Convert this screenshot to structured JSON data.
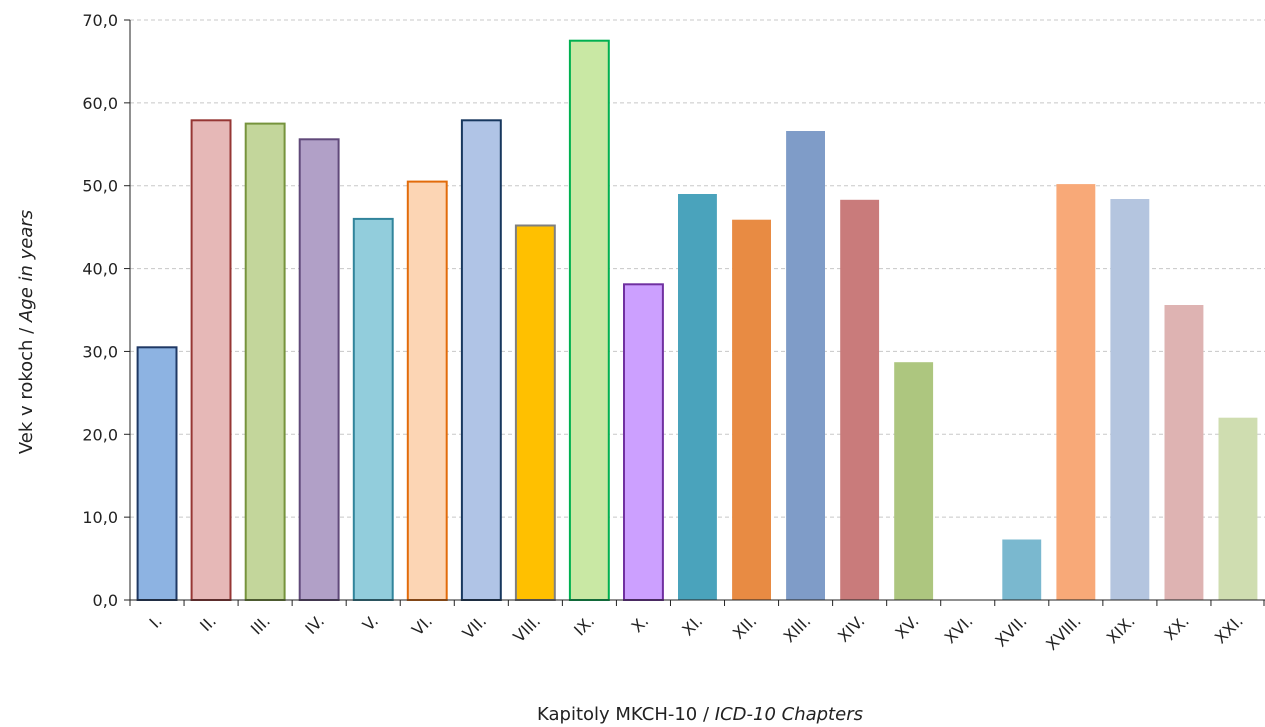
{
  "chart_data": {
    "type": "bar",
    "categories": [
      "I.",
      "II.",
      "III.",
      "IV.",
      "V.",
      "VI.",
      "VII.",
      "VIII.",
      "IX.",
      "X.",
      "XI.",
      "XII.",
      "XIII.",
      "XIV.",
      "XV.",
      "XVI.",
      "XVII.",
      "XVIII.",
      "XIX.",
      "XX.",
      "XXI."
    ],
    "values": [
      30.5,
      57.9,
      57.5,
      55.6,
      46.0,
      50.5,
      57.9,
      45.2,
      67.5,
      38.1,
      49.0,
      45.9,
      56.6,
      48.3,
      28.7,
      null,
      7.3,
      50.2,
      48.4,
      35.6,
      22.0
    ],
    "fill_colors": [
      "#8db3e2",
      "#e6b8b7",
      "#c3d69b",
      "#b1a0c7",
      "#92cddc",
      "#fcd5b4",
      "#b0c4e6",
      "#ffc000",
      "#c9e8a4",
      "#cca0ff",
      "#4aa3bc",
      "#e88b43",
      "#7f9cc8",
      "#c97b7b",
      "#adc67f",
      "#ffffff",
      "#7ab8cf",
      "#f8a978",
      "#b4c5df",
      "#deb3b2",
      "#cfddb0"
    ],
    "border_colors": [
      "#1f3864",
      "#963634",
      "#76933c",
      "#60497a",
      "#31849b",
      "#e26b0a",
      "#17375e",
      "#7f7f7f",
      "#00b050",
      "#7030a0",
      null,
      null,
      null,
      null,
      null,
      null,
      null,
      null,
      null,
      null,
      null
    ],
    "ylim": [
      0,
      70
    ],
    "yticks": [
      "0,0",
      "10,0",
      "20,0",
      "30,0",
      "40,0",
      "50,0",
      "60,0",
      "70,0"
    ],
    "ylabel": {
      "main": "Vek v rokoch / ",
      "italic": "Age in years"
    },
    "xlabel": {
      "main": "Kapitoly MKCH-10 / ",
      "italic": "ICD-10 Chapters"
    },
    "grid": true
  }
}
